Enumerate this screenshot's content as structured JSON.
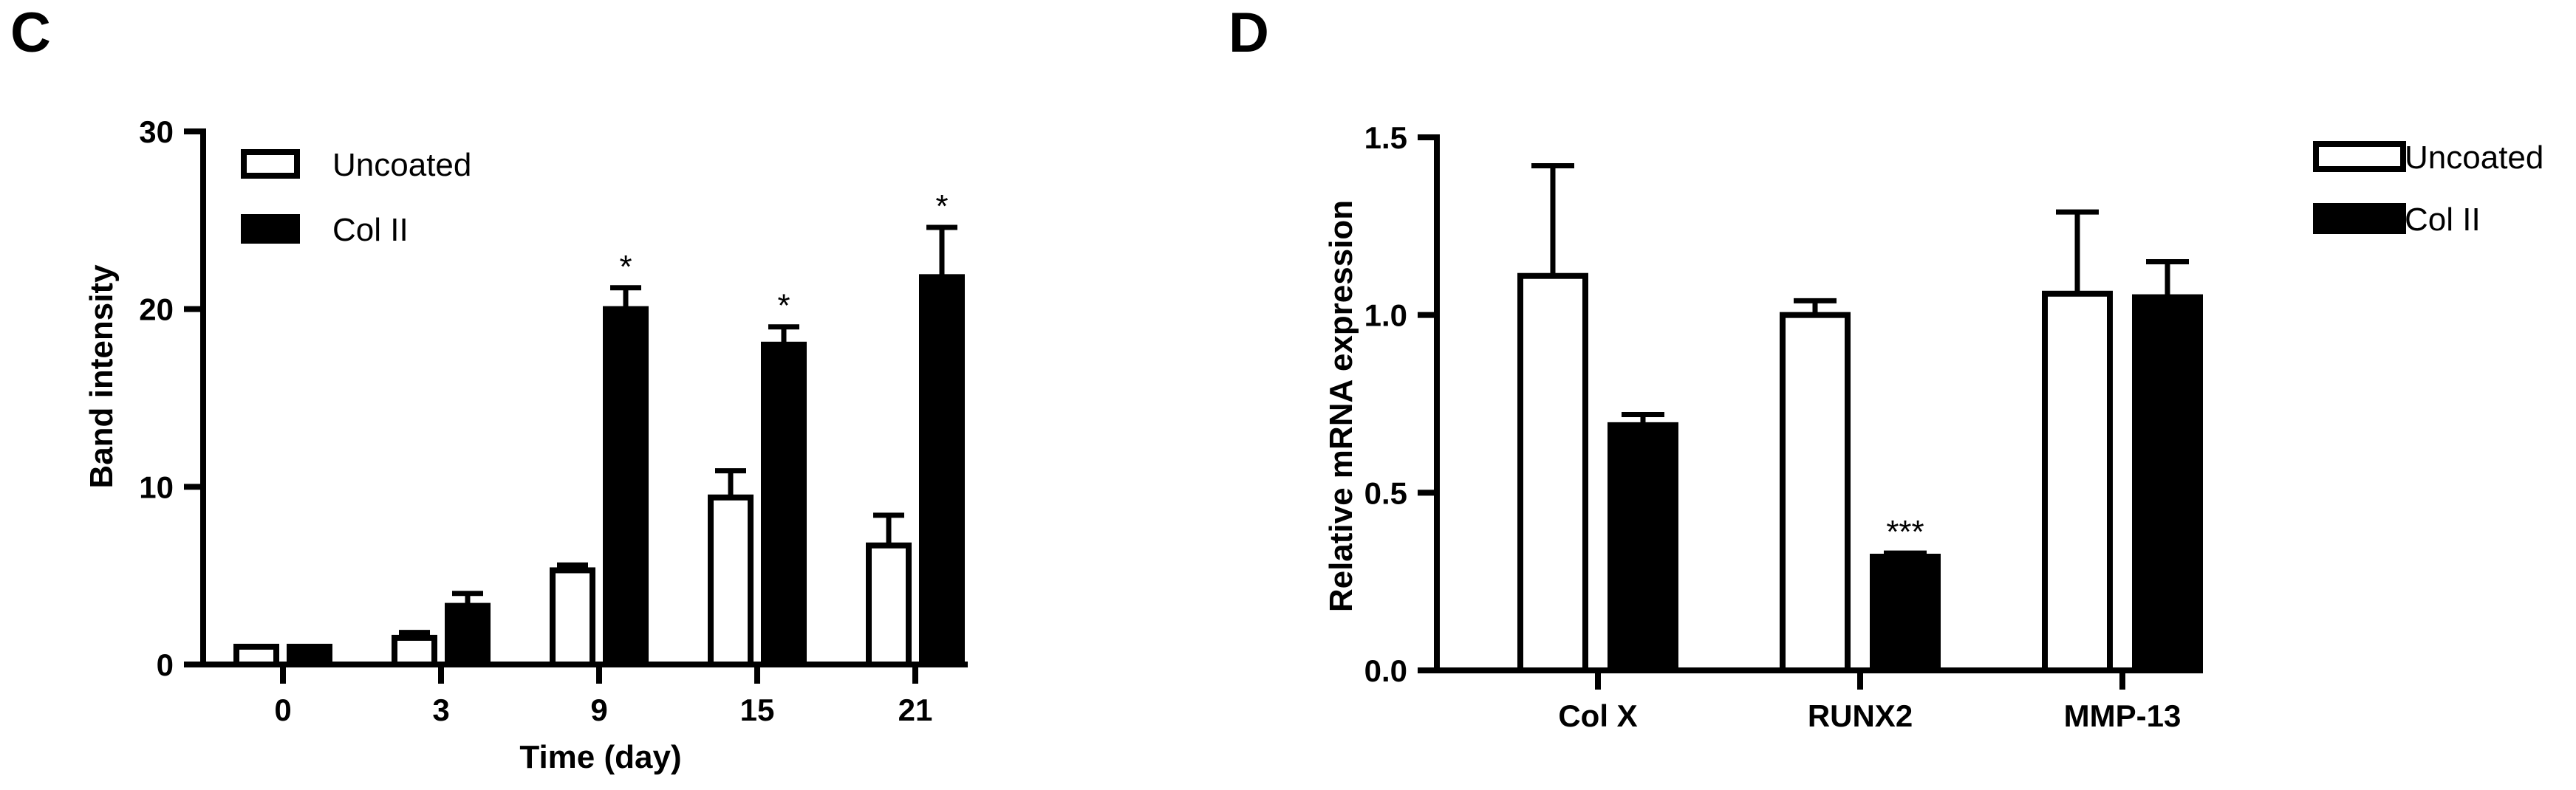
{
  "chart_data": [
    {
      "panel": "C",
      "type": "bar",
      "categories": [
        "0",
        "3",
        "9",
        "15",
        "21"
      ],
      "xlabel": "Time (day)",
      "ylabel": "Band intensity",
      "ylim": [
        0,
        30
      ],
      "yticks": [
        "0",
        "10",
        "20",
        "30"
      ],
      "legend_position": "top-left",
      "series": [
        {
          "name": "Uncoated",
          "fill": "#ffffff",
          "values": [
            1.0,
            1.5,
            5.3,
            9.4,
            6.7
          ],
          "errors": [
            0.0,
            0.3,
            0.3,
            1.5,
            1.7
          ]
        },
        {
          "name": "Col II",
          "fill": "#000000",
          "values": [
            1.0,
            3.3,
            20.0,
            18.0,
            21.8
          ],
          "errors": [
            0.0,
            0.7,
            1.2,
            1.0,
            2.8
          ]
        }
      ],
      "annotations": [
        {
          "category": "9",
          "series": "Col II",
          "text": "*"
        },
        {
          "category": "15",
          "series": "Col II",
          "text": "*"
        },
        {
          "category": "21",
          "series": "Col II",
          "text": "*"
        }
      ]
    },
    {
      "panel": "D",
      "type": "bar",
      "categories": [
        "Col X",
        "RUNX2",
        "MMP-13"
      ],
      "xlabel": "",
      "ylabel": "Relative mRNA expression",
      "ylim": [
        0,
        1.5
      ],
      "yticks": [
        "0.0",
        "0.5",
        "1.0",
        "1.5"
      ],
      "legend_position": "outside-right",
      "series": [
        {
          "name": "Uncoated",
          "fill": "#ffffff",
          "values": [
            1.11,
            1.0,
            1.06
          ],
          "errors": [
            0.31,
            0.04,
            0.23
          ]
        },
        {
          "name": "Col II",
          "fill": "#000000",
          "values": [
            0.69,
            0.32,
            1.05
          ],
          "errors": [
            0.03,
            0.01,
            0.1
          ]
        }
      ],
      "annotations": [
        {
          "category": "RUNX2",
          "series": "Col II",
          "text": "***"
        }
      ]
    }
  ]
}
